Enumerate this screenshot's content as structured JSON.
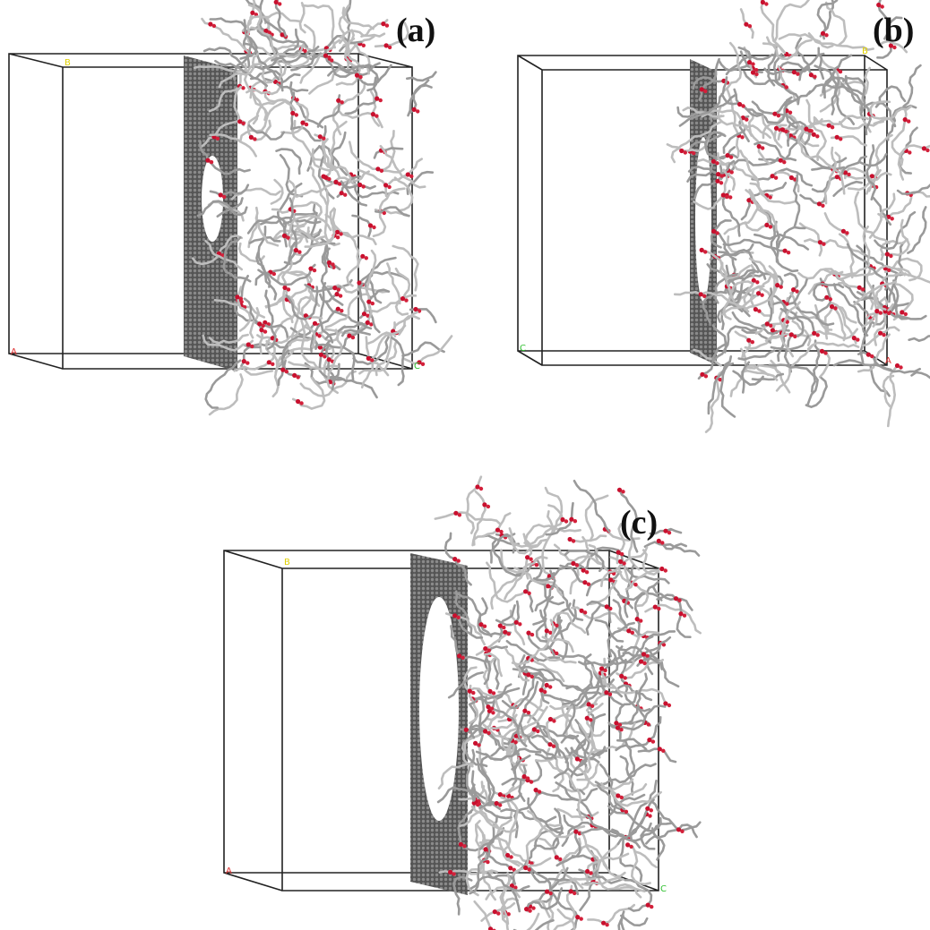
{
  "panels": [
    {
      "label": "(a)",
      "axis_labels": {
        "b": "B",
        "a": "A",
        "c": "C"
      }
    },
    {
      "label": "(b)",
      "axis_labels": {
        "b": "B",
        "c": "C",
        "a": "A"
      }
    },
    {
      "label": "(c)",
      "axis_labels": {
        "b": "B",
        "a": "A",
        "c": "C"
      }
    }
  ]
}
